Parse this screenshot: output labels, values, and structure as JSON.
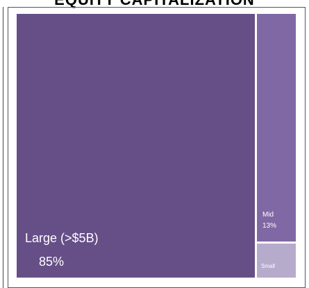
{
  "chart_data": {
    "type": "treemap",
    "title": "EQUITY CAPITALIZATION",
    "tiles": [
      {
        "name": "Large (>$5B)",
        "value_label": "85%",
        "value": 85,
        "color": "#664f87"
      },
      {
        "name": "Mid",
        "value_label": "13%",
        "value": 13,
        "color": "#8068a4"
      },
      {
        "name": "Small",
        "value_label": "",
        "value": 2,
        "color": "#b7abcc"
      }
    ],
    "background": "#ffffff"
  }
}
